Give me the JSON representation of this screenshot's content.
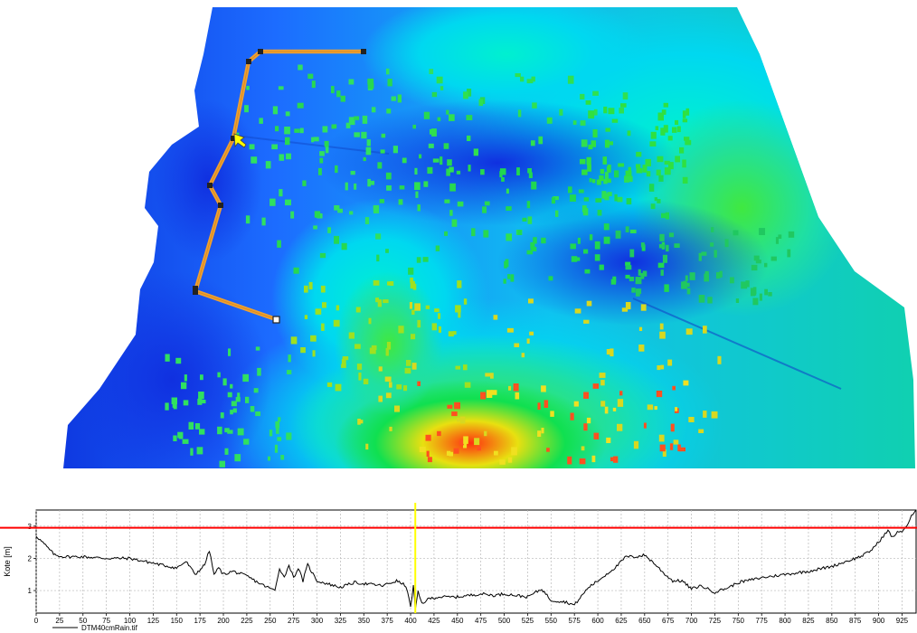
{
  "map": {
    "colors": {
      "low": "#0028e0",
      "mid_low": "#1870ff",
      "mid": "#00e8e8",
      "mid_high": "#10e050",
      "high": "#e8e010",
      "peak": "#ff3010",
      "route": "#f0a030",
      "building": "#30e040",
      "cursor": "#ffff00"
    },
    "cursor_icon": "arrow-cursor-icon"
  },
  "chart_data": {
    "type": "line",
    "title": "",
    "xlabel": "",
    "ylabel": "Kote [m]",
    "xlim": [
      0,
      940
    ],
    "ylim": [
      0.3,
      3.5
    ],
    "x_ticks": [
      0,
      25,
      50,
      75,
      100,
      125,
      150,
      175,
      200,
      225,
      250,
      275,
      300,
      325,
      350,
      375,
      400,
      425,
      450,
      475,
      500,
      525,
      550,
      575,
      600,
      625,
      650,
      675,
      700,
      725,
      750,
      775,
      800,
      825,
      850,
      875,
      900,
      925
    ],
    "y_ticks": [
      1,
      2,
      3
    ],
    "grid": true,
    "threshold": {
      "value": 2.95,
      "color": "#ff0000"
    },
    "cursor_x": {
      "value": 405,
      "color": "#ffff00"
    },
    "legend": {
      "position": "bottom-left",
      "label": "DTM40cmRain.tif"
    },
    "series": [
      {
        "name": "DTM40cmRain.tif",
        "color": "#000000",
        "x": [
          0,
          10,
          20,
          30,
          50,
          75,
          100,
          125,
          150,
          160,
          170,
          180,
          185,
          190,
          195,
          200,
          210,
          220,
          225,
          240,
          255,
          260,
          265,
          270,
          275,
          280,
          285,
          290,
          300,
          325,
          340,
          355,
          370,
          385,
          395,
          400,
          403,
          405,
          408,
          412,
          420,
          430,
          450,
          475,
          490,
          500,
          525,
          540,
          550,
          565,
          575,
          590,
          600,
          620,
          630,
          640,
          650,
          660,
          670,
          680,
          690,
          700,
          710,
          725,
          740,
          750,
          775,
          800,
          825,
          850,
          870,
          880,
          890,
          900,
          905,
          910,
          915,
          920,
          925,
          930,
          935,
          940
        ],
        "y": [
          2.7,
          2.4,
          2.1,
          2.05,
          2.05,
          2.0,
          2.0,
          1.85,
          1.7,
          1.9,
          1.5,
          1.8,
          2.25,
          1.5,
          1.7,
          1.5,
          1.6,
          1.5,
          1.45,
          1.2,
          1.0,
          1.7,
          1.4,
          1.8,
          1.4,
          1.7,
          1.3,
          1.8,
          1.3,
          1.1,
          1.25,
          1.2,
          1.15,
          1.3,
          1.15,
          0.5,
          1.15,
          0.4,
          0.95,
          0.6,
          0.75,
          0.8,
          0.8,
          0.9,
          0.85,
          0.9,
          0.8,
          1.05,
          0.7,
          0.65,
          0.55,
          1.1,
          1.3,
          1.75,
          2.05,
          2.05,
          2.1,
          1.85,
          1.55,
          1.3,
          1.3,
          1.05,
          1.15,
          0.95,
          1.1,
          1.25,
          1.4,
          1.5,
          1.6,
          1.75,
          1.95,
          2.05,
          2.2,
          2.5,
          2.7,
          2.85,
          2.65,
          2.8,
          2.85,
          3.0,
          3.3,
          3.5
        ]
      }
    ]
  }
}
